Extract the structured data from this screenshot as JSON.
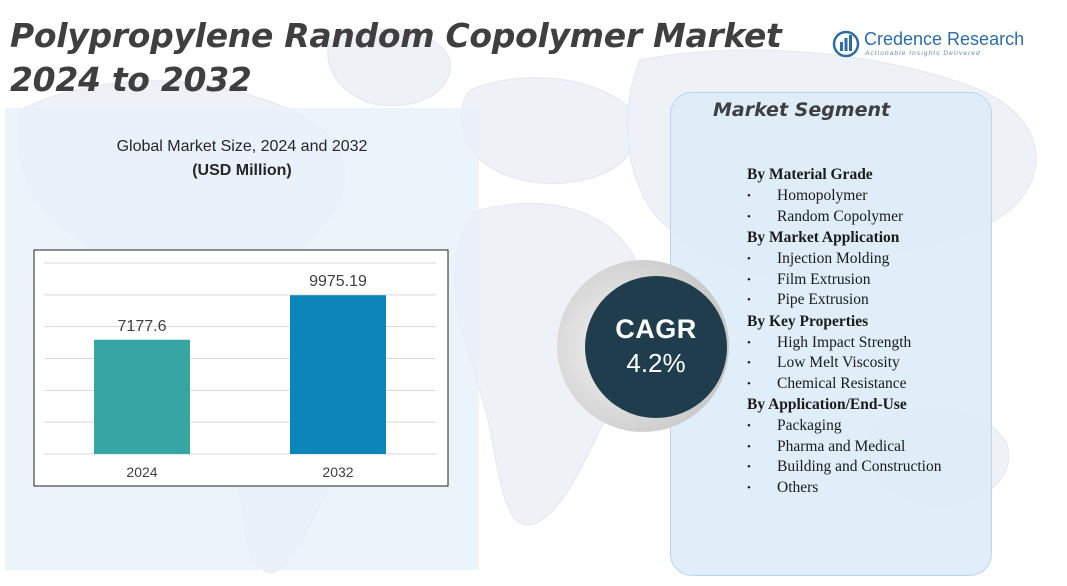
{
  "title": {
    "line1": "Polypropylene Random Copolymer Market",
    "line2": "2024 to 2032"
  },
  "logo": {
    "name": "Credence Research",
    "tagline": "Actionable Insights Delivered",
    "icon": "bar-chart-globe-icon"
  },
  "chart": {
    "title": "Global Market Size, 2024 and 2032",
    "unit": "(USD Million)"
  },
  "chart_data": {
    "type": "bar",
    "categories": [
      "2024",
      "2032"
    ],
    "values": [
      7177.6,
      9975.19
    ],
    "value_labels": [
      "7177.6",
      "9975.19"
    ],
    "colors": [
      "#35a6a3",
      "#0c86ba"
    ],
    "title": "Global Market Size, 2024 and 2032",
    "ylabel": "(USD Million)",
    "ylim": [
      0,
      12000
    ],
    "grid": true,
    "legend": "none"
  },
  "cagr": {
    "label": "CAGR",
    "value": "4.2%"
  },
  "segment": {
    "title": "Market Segment",
    "groups": [
      {
        "title": "By Material Grade",
        "items": [
          "Homopolymer",
          "Random  Copolymer"
        ]
      },
      {
        "title": "By Market Application",
        "items": [
          "Injection Molding",
          "Film Extrusion",
          "Pipe Extrusion"
        ]
      },
      {
        "title": "By Key Properties",
        "items": [
          "High Impact Strength",
          "Low Melt Viscosity",
          "Chemical Resistance"
        ]
      },
      {
        "title": "By Application/End-Use",
        "items": [
          "Packaging",
          "Pharma and Medical",
          "Building and Construction",
          "Others"
        ]
      }
    ]
  },
  "colors": {
    "title_text": "#3f3f3f",
    "panel_bg": "#e7f1fa",
    "cagr_circle": "#1f3d4c",
    "map": "#eef2f6"
  }
}
